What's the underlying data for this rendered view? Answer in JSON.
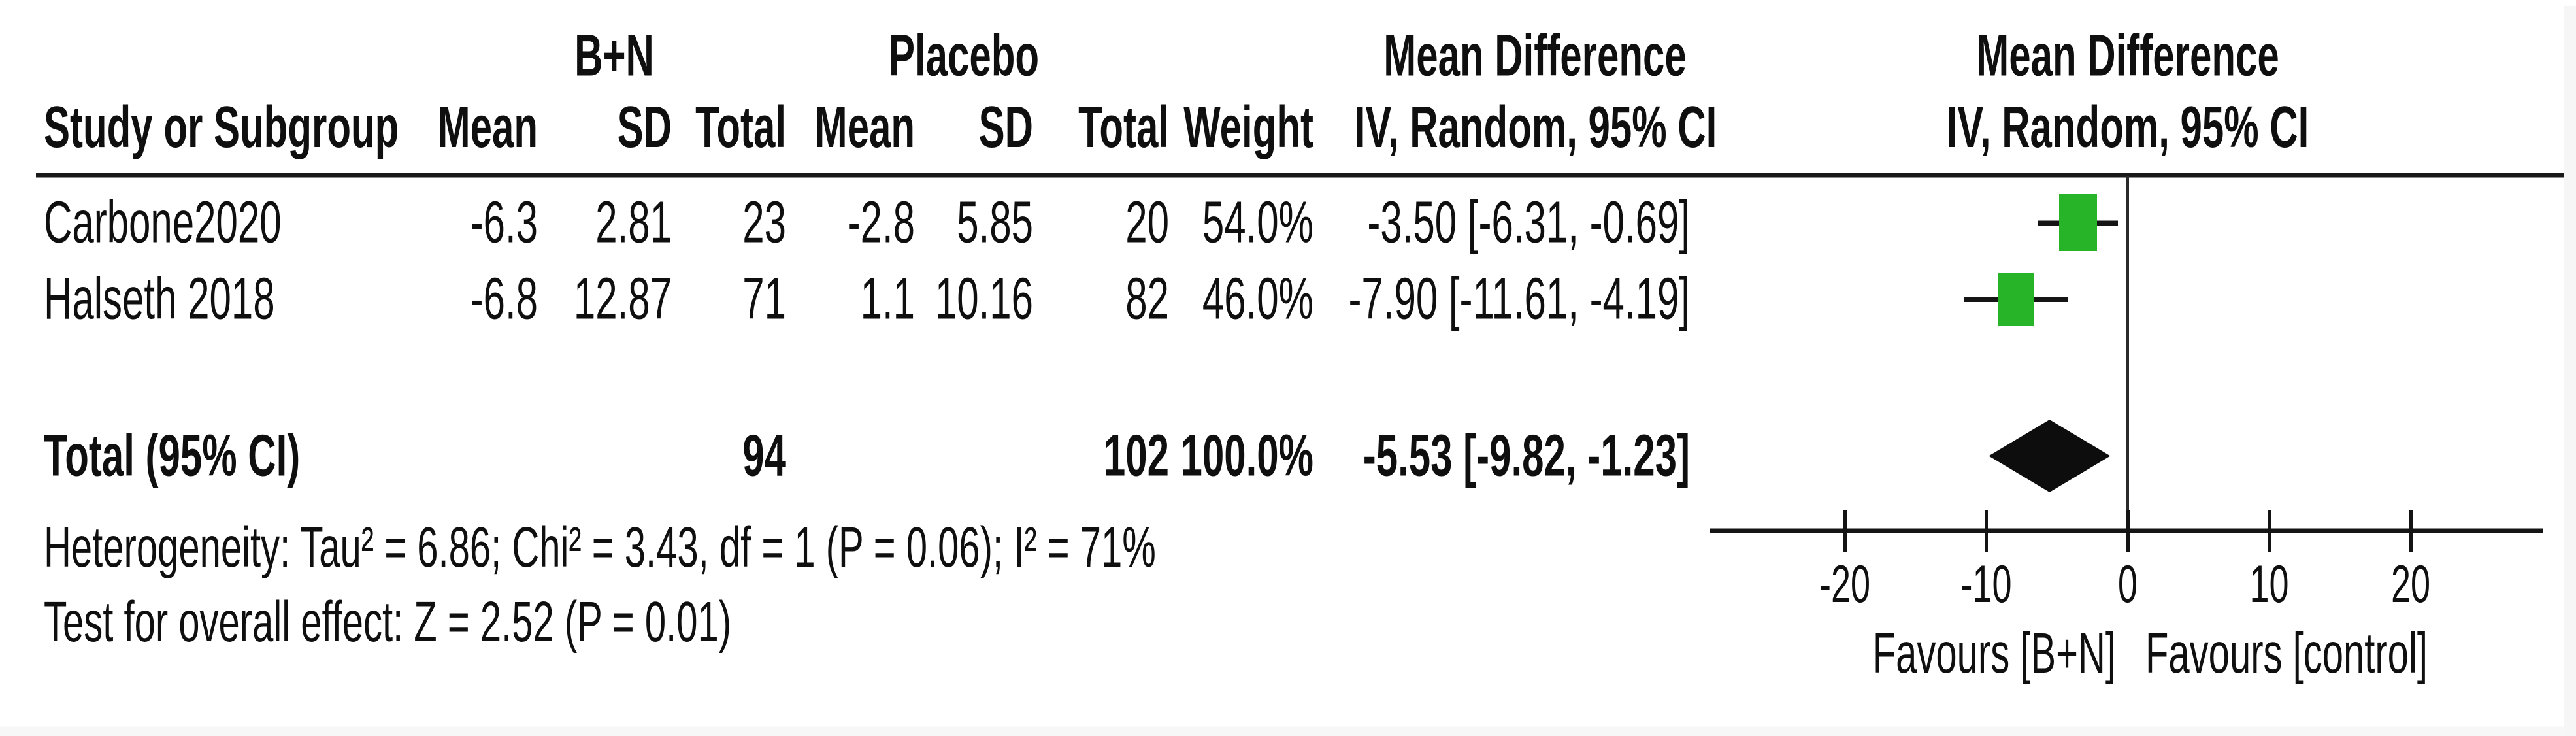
{
  "table": {
    "group_headers": {
      "experimental": "B+N",
      "control": "Placebo",
      "effect": "Mean Difference",
      "plot": "Mean Difference"
    },
    "column_headers": {
      "study": "Study or Subgroup",
      "mean_exp": "Mean",
      "sd_exp": "SD",
      "total_exp": "Total",
      "mean_ctrl": "Mean",
      "sd_ctrl": "SD",
      "total_ctrl": "Total",
      "weight": "Weight",
      "effect_ci": "IV, Random, 95% CI",
      "plot_ci": "IV, Random, 95% CI"
    },
    "rows": [
      {
        "study": "Carbone2020",
        "mean_exp": "-6.3",
        "sd_exp": "2.81",
        "total_exp": "23",
        "mean_ctrl": "-2.8",
        "sd_ctrl": "5.85",
        "total_ctrl": "20",
        "weight": "54.0%",
        "effect_ci": "-3.50 [-6.31, -0.69]"
      },
      {
        "study": "Halseth 2018",
        "mean_exp": "-6.8",
        "sd_exp": "12.87",
        "total_exp": "71",
        "mean_ctrl": "1.1",
        "sd_ctrl": "10.16",
        "total_ctrl": "82",
        "weight": "46.0%",
        "effect_ci": "-7.90 [-11.61, -4.19]"
      }
    ],
    "total_row": {
      "label": "Total (95% CI)",
      "total_exp": "94",
      "total_ctrl": "102",
      "weight": "100.0%",
      "effect_ci": "-5.53 [-9.82, -1.23]"
    },
    "footnotes": {
      "heterogeneity": "Heterogeneity: Tau² = 6.86; Chi² = 3.43, df = 1 (P = 0.06); I² = 71%",
      "overall_effect": "Test for overall effect: Z = 2.52 (P = 0.01)"
    }
  },
  "chart_data": {
    "type": "scatter",
    "subtype": "forest_plot_mean_difference",
    "effect_measure": "IV, Random, 95% CI",
    "x_axis": {
      "ticks": [
        -20,
        -10,
        0,
        10,
        20
      ],
      "tick_labels": [
        "-20",
        "-10",
        "0",
        "10",
        "20"
      ],
      "range": [
        -29.5,
        29.5
      ],
      "zero_line": 0,
      "label_left": "Favours [B+N]",
      "label_right": "Favours [control]"
    },
    "studies": [
      {
        "name": "Carbone2020",
        "estimate": -3.5,
        "ci_low": -6.31,
        "ci_high": -0.69,
        "weight_pct": 54.0
      },
      {
        "name": "Halseth 2018",
        "estimate": -7.9,
        "ci_low": -11.61,
        "ci_high": -4.19,
        "weight_pct": 46.0
      }
    ],
    "total": {
      "name": "Total (95% CI)",
      "estimate": -5.53,
      "ci_low": -9.82,
      "ci_high": -1.23,
      "weight_pct": 100.0
    },
    "colors": {
      "study_marker": "#28b428",
      "ci_line": "#151515",
      "diamond": "#0d0d0d"
    }
  }
}
